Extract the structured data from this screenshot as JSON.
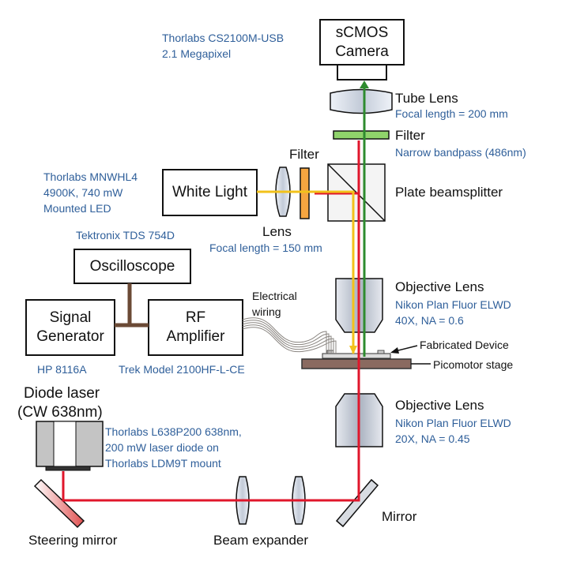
{
  "boxes": {
    "camera": [
      "sCMOS",
      "Camera"
    ],
    "white_light": "White Light",
    "oscilloscope": "Oscilloscope",
    "signal_generator": [
      "Signal",
      "Generator"
    ],
    "rf_amplifier": [
      "RF",
      "Amplifier"
    ]
  },
  "labels": {
    "camera_model": [
      "Thorlabs CS2100M-USB",
      "2.1 Megapixel"
    ],
    "tube_lens": "Tube Lens",
    "tube_lens_focal": "Focal length = 200 mm",
    "filter_top": "Filter",
    "filter_top_spec": "Narrow bandpass (486nm)",
    "filter_side": "Filter",
    "plate_beamsplitter": "Plate beamsplitter",
    "led_model": [
      "Thorlabs MNWHL4",
      "4900K, 740 mW",
      "Mounted LED"
    ],
    "lens": "Lens",
    "lens_focal": "Focal length = 150 mm",
    "oscilloscope_model": "Tektronix TDS 754D",
    "electrical_wiring": [
      "Electrical",
      "wiring"
    ],
    "objective_top": "Objective Lens",
    "objective_top_spec": [
      "Nikon Plan Fluor ELWD",
      "40X, NA = 0.6"
    ],
    "fabricated_device": "Fabricated Device",
    "picomotor_stage": "Picomotor stage",
    "signal_generator_model": "HP 8116A",
    "amplifier_model": "Trek Model 2100HF-L-CE",
    "diode_laser": [
      "Diode laser",
      "(CW 638nm)"
    ],
    "diode_model": [
      "Thorlabs L638P200 638nm,",
      "200 mW laser diode on",
      "Thorlabs LDM9T mount"
    ],
    "objective_bottom": "Objective Lens",
    "objective_bottom_spec": [
      "Nikon Plan Fluor ELWD",
      "20X, NA = 0.45"
    ],
    "steering_mirror": "Steering mirror",
    "beam_expander": "Beam expander",
    "mirror": "Mirror"
  },
  "colors": {
    "laser_beam": "#e0162b",
    "white_beam": "#f2c21b",
    "fluorescence_beam": "#2e8b2e",
    "filter_green": "#8fd36b",
    "filter_orange": "#f5a540",
    "cable_brown": "#6b4a36",
    "stage_brown": "#8a6a60",
    "blue_text": "#2f5f9a"
  }
}
